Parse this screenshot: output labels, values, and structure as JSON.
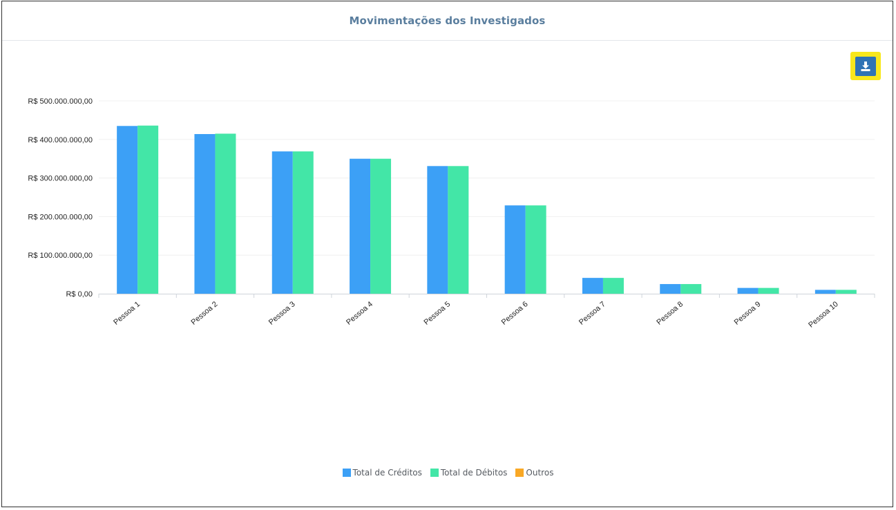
{
  "title": "Movimentações dos Investigados",
  "download_button": {
    "icon": "download-icon"
  },
  "colors": {
    "creditos": "#3ca0f6",
    "debitos": "#43e6a7",
    "outros": "#f9a825",
    "title": "#5a7e9e",
    "highlight": "#f8e71c",
    "button": "#2f73b5"
  },
  "chart_data": {
    "type": "bar",
    "title": "Movimentações dos Investigados",
    "categories": [
      "Pessoa 1",
      "Pessoa 2",
      "Pessoa 3",
      "Pessoa 4",
      "Pessoa 5",
      "Pessoa 6",
      "Pessoa 7",
      "Pessoa 8",
      "Pessoa 9",
      "Pessoa 10"
    ],
    "series": [
      {
        "name": "Total de Créditos",
        "values": [
          435000000,
          414000000,
          369000000,
          350000000,
          331000000,
          229000000,
          41000000,
          25000000,
          15000000,
          10000000
        ]
      },
      {
        "name": "Total de Débitos",
        "values": [
          436000000,
          415000000,
          369000000,
          350000000,
          331000000,
          229000000,
          41000000,
          25000000,
          15000000,
          10000000
        ]
      },
      {
        "name": "Outros",
        "values": [
          0,
          0,
          0,
          0,
          0,
          0,
          0,
          0,
          0,
          0
        ]
      }
    ],
    "ylim": [
      0,
      500000000
    ],
    "yticks": [
      "R$ 0,00",
      "R$ 100.000.000,00",
      "R$ 200.000.000,00",
      "R$ 300.000.000,00",
      "R$ 400.000.000,00",
      "R$ 500.000.000,00"
    ],
    "xlabel": "",
    "ylabel": "",
    "grid": true,
    "legend": "bottom-center"
  },
  "legend": [
    {
      "label": "Total de Créditos",
      "color": "#3ca0f6"
    },
    {
      "label": "Total de Débitos",
      "color": "#43e6a7"
    },
    {
      "label": "Outros",
      "color": "#f9a825"
    }
  ]
}
